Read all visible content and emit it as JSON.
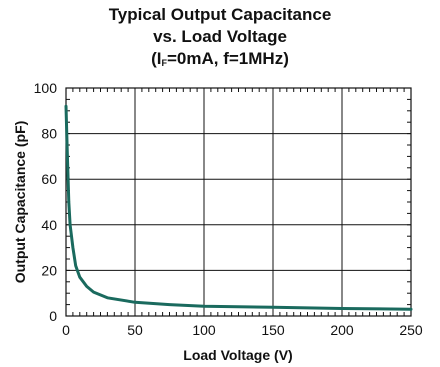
{
  "chart_data": {
    "type": "line",
    "title_lines": [
      "Typical Output Capacitance",
      "vs. Load Voltage"
    ],
    "title_paren": {
      "open": "(I",
      "sub": "F",
      "rest": "=0mA, f=1MHz)"
    },
    "xlabel": "Load Voltage (V)",
    "ylabel": "Output Capacitance (pF)",
    "xlim": [
      0,
      250
    ],
    "ylim": [
      0,
      100
    ],
    "x_ticks": [
      0,
      50,
      100,
      150,
      200,
      250
    ],
    "y_ticks": [
      0,
      20,
      40,
      60,
      80,
      100
    ],
    "grid": true,
    "series_color": "#1a6a5e",
    "series": [
      {
        "x": [
          0,
          1,
          2,
          3,
          5,
          7,
          10,
          15,
          20,
          30,
          50,
          75,
          100,
          150,
          200,
          250
        ],
        "values": [
          92,
          70,
          50,
          40,
          30,
          22,
          17,
          13,
          10.5,
          8,
          6,
          5,
          4.3,
          3.8,
          3.3,
          3
        ]
      }
    ]
  }
}
